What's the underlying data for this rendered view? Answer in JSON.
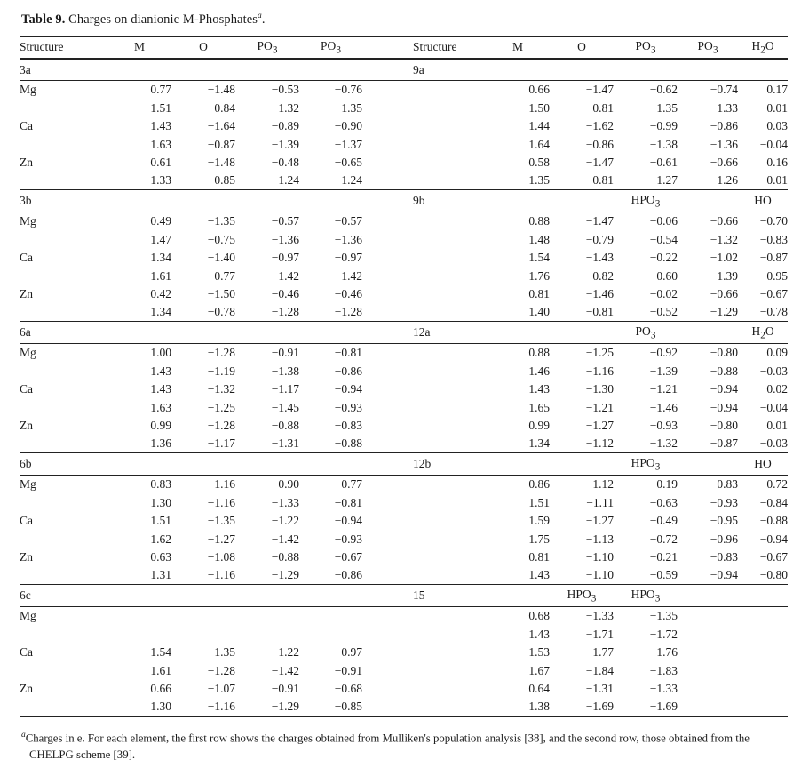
{
  "title": {
    "label": "Table 9.",
    "text": " Charges on dianionic M-Phosphates",
    "footnote_marker": "a",
    "period": "."
  },
  "header": {
    "left": [
      "Structure",
      "M",
      "O",
      "PO3",
      "PO3"
    ],
    "right": [
      "Structure",
      "M",
      "O",
      "PO3",
      "PO3",
      "H2O"
    ]
  },
  "sections": [
    {
      "left_label": "3a",
      "right_label": "9a",
      "left_subheaders": [
        "",
        "",
        "",
        ""
      ],
      "right_subheaders": [
        "",
        "",
        "",
        "",
        ""
      ],
      "rows": [
        {
          "element": "Mg",
          "left": [
            "0.77",
            "−1.48",
            "−0.53",
            "−0.76"
          ],
          "right": [
            "0.66",
            "−1.47",
            "−0.62",
            "−0.74",
            "0.17"
          ]
        },
        {
          "element": "",
          "left": [
            "1.51",
            "−0.84",
            "−1.32",
            "−1.35"
          ],
          "right": [
            "1.50",
            "−0.81",
            "−1.35",
            "−1.33",
            "−0.01"
          ]
        },
        {
          "element": "Ca",
          "left": [
            "1.43",
            "−1.64",
            "−0.89",
            "−0.90"
          ],
          "right": [
            "1.44",
            "−1.62",
            "−0.99",
            "−0.86",
            "0.03"
          ]
        },
        {
          "element": "",
          "left": [
            "1.63",
            "−0.87",
            "−1.39",
            "−1.37"
          ],
          "right": [
            "1.64",
            "−0.86",
            "−1.38",
            "−1.36",
            "−0.04"
          ]
        },
        {
          "element": "Zn",
          "left": [
            "0.61",
            "−1.48",
            "−0.48",
            "−0.65"
          ],
          "right": [
            "0.58",
            "−1.47",
            "−0.61",
            "−0.66",
            "0.16"
          ]
        },
        {
          "element": "",
          "left": [
            "1.33",
            "−0.85",
            "−1.24",
            "−1.24"
          ],
          "right": [
            "1.35",
            "−0.81",
            "−1.27",
            "−1.26",
            "−0.01"
          ]
        }
      ]
    },
    {
      "left_label": "3b",
      "right_label": "9b",
      "left_subheaders": [
        "",
        "",
        "",
        ""
      ],
      "right_subheaders": [
        "",
        "",
        "HPO3",
        "",
        "HO"
      ],
      "rows": [
        {
          "element": "Mg",
          "left": [
            "0.49",
            "−1.35",
            "−0.57",
            "−0.57"
          ],
          "right": [
            "0.88",
            "−1.47",
            "−0.06",
            "−0.66",
            "−0.70"
          ]
        },
        {
          "element": "",
          "left": [
            "1.47",
            "−0.75",
            "−1.36",
            "−1.36"
          ],
          "right": [
            "1.48",
            "−0.79",
            "−0.54",
            "−1.32",
            "−0.83"
          ]
        },
        {
          "element": "Ca",
          "left": [
            "1.34",
            "−1.40",
            "−0.97",
            "−0.97"
          ],
          "right": [
            "1.54",
            "−1.43",
            "−0.22",
            "−1.02",
            "−0.87"
          ]
        },
        {
          "element": "",
          "left": [
            "1.61",
            "−0.77",
            "−1.42",
            "−1.42"
          ],
          "right": [
            "1.76",
            "−0.82",
            "−0.60",
            "−1.39",
            "−0.95"
          ]
        },
        {
          "element": "Zn",
          "left": [
            "0.42",
            "−1.50",
            "−0.46",
            "−0.46"
          ],
          "right": [
            "0.81",
            "−1.46",
            "−0.02",
            "−0.66",
            "−0.67"
          ]
        },
        {
          "element": "",
          "left": [
            "1.34",
            "−0.78",
            "−1.28",
            "−1.28"
          ],
          "right": [
            "1.40",
            "−0.81",
            "−0.52",
            "−1.29",
            "−0.78"
          ]
        }
      ]
    },
    {
      "left_label": "6a",
      "right_label": "12a",
      "left_subheaders": [
        "",
        "",
        "",
        ""
      ],
      "right_subheaders": [
        "",
        "",
        "PO3",
        "",
        "H2O"
      ],
      "rows": [
        {
          "element": "Mg",
          "left": [
            "1.00",
            "−1.28",
            "−0.91",
            "−0.81"
          ],
          "right": [
            "0.88",
            "−1.25",
            "−0.92",
            "−0.80",
            "0.09"
          ]
        },
        {
          "element": "",
          "left": [
            "1.43",
            "−1.19",
            "−1.38",
            "−0.86"
          ],
          "right": [
            "1.46",
            "−1.16",
            "−1.39",
            "−0.88",
            "−0.03"
          ]
        },
        {
          "element": "Ca",
          "left": [
            "1.43",
            "−1.32",
            "−1.17",
            "−0.94"
          ],
          "right": [
            "1.43",
            "−1.30",
            "−1.21",
            "−0.94",
            "0.02"
          ]
        },
        {
          "element": "",
          "left": [
            "1.63",
            "−1.25",
            "−1.45",
            "−0.93"
          ],
          "right": [
            "1.65",
            "−1.21",
            "−1.46",
            "−0.94",
            "−0.04"
          ]
        },
        {
          "element": "Zn",
          "left": [
            "0.99",
            "−1.28",
            "−0.88",
            "−0.83"
          ],
          "right": [
            "0.99",
            "−1.27",
            "−0.93",
            "−0.80",
            "0.01"
          ]
        },
        {
          "element": "",
          "left": [
            "1.36",
            "−1.17",
            "−1.31",
            "−0.88"
          ],
          "right": [
            "1.34",
            "−1.12",
            "−1.32",
            "−0.87",
            "−0.03"
          ]
        }
      ]
    },
    {
      "left_label": "6b",
      "right_label": "12b",
      "left_subheaders": [
        "",
        "",
        "",
        ""
      ],
      "right_subheaders": [
        "",
        "",
        "HPO3",
        "",
        "HO"
      ],
      "rows": [
        {
          "element": "Mg",
          "left": [
            "0.83",
            "−1.16",
            "−0.90",
            "−0.77"
          ],
          "right": [
            "0.86",
            "−1.12",
            "−0.19",
            "−0.83",
            "−0.72"
          ]
        },
        {
          "element": "",
          "left": [
            "1.30",
            "−1.16",
            "−1.33",
            "−0.81"
          ],
          "right": [
            "1.51",
            "−1.11",
            "−0.63",
            "−0.93",
            "−0.84"
          ]
        },
        {
          "element": "Ca",
          "left": [
            "1.51",
            "−1.35",
            "−1.22",
            "−0.94"
          ],
          "right": [
            "1.59",
            "−1.27",
            "−0.49",
            "−0.95",
            "−0.88"
          ]
        },
        {
          "element": "",
          "left": [
            "1.62",
            "−1.27",
            "−1.42",
            "−0.93"
          ],
          "right": [
            "1.75",
            "−1.13",
            "−0.72",
            "−0.96",
            "−0.94"
          ]
        },
        {
          "element": "Zn",
          "left": [
            "0.63",
            "−1.08",
            "−0.88",
            "−0.67"
          ],
          "right": [
            "0.81",
            "−1.10",
            "−0.21",
            "−0.83",
            "−0.67"
          ]
        },
        {
          "element": "",
          "left": [
            "1.31",
            "−1.16",
            "−1.29",
            "−0.86"
          ],
          "right": [
            "1.43",
            "−1.10",
            "−0.59",
            "−0.94",
            "−0.80"
          ]
        }
      ]
    },
    {
      "left_label": "6c",
      "right_label": "15",
      "left_subheaders": [
        "",
        "",
        "",
        ""
      ],
      "right_subheaders": [
        "",
        "HPO3",
        "HPO3",
        "",
        ""
      ],
      "rows": [
        {
          "element": "Mg",
          "left": [
            "",
            "",
            "",
            ""
          ],
          "right": [
            "0.68",
            "−1.33",
            "−1.35",
            "",
            ""
          ]
        },
        {
          "element": "",
          "left": [
            "",
            "",
            "",
            ""
          ],
          "right": [
            "1.43",
            "−1.71",
            "−1.72",
            "",
            ""
          ]
        },
        {
          "element": "Ca",
          "left": [
            "1.54",
            "−1.35",
            "−1.22",
            "−0.97"
          ],
          "right": [
            "1.53",
            "−1.77",
            "−1.76",
            "",
            ""
          ]
        },
        {
          "element": "",
          "left": [
            "1.61",
            "−1.28",
            "−1.42",
            "−0.91"
          ],
          "right": [
            "1.67",
            "−1.84",
            "−1.83",
            "",
            ""
          ]
        },
        {
          "element": "Zn",
          "left": [
            "0.66",
            "−1.07",
            "−0.91",
            "−0.68"
          ],
          "right": [
            "0.64",
            "−1.31",
            "−1.33",
            "",
            ""
          ]
        },
        {
          "element": "",
          "left": [
            "1.30",
            "−1.16",
            "−1.29",
            "−0.85"
          ],
          "right": [
            "1.38",
            "−1.69",
            "−1.69",
            "",
            ""
          ]
        }
      ]
    }
  ],
  "footnote": {
    "marker": "a",
    "text": "Charges in e. For each element, the first row shows the charges obtained from Mulliken's population analysis [38], and the second row, those obtained from the CHELPG scheme [39]."
  }
}
